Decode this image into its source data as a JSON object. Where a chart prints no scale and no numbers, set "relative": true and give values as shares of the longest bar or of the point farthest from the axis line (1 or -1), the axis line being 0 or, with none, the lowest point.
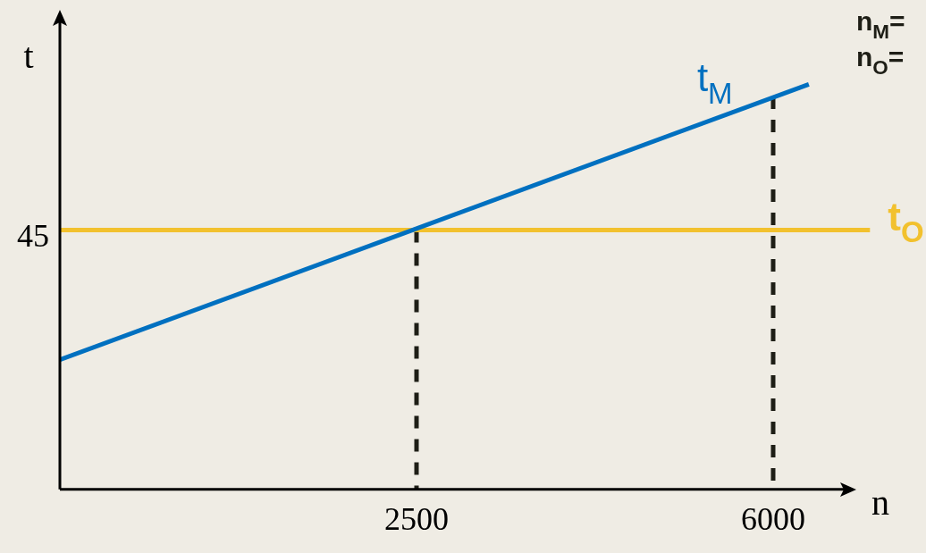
{
  "chart_data": {
    "type": "line",
    "xlabel": "n",
    "ylabel": "t",
    "relative": true,
    "xlim": [
      -1000,
      7000
    ],
    "xticks": [
      2500,
      6000
    ],
    "line_style": "solid",
    "marker": "none",
    "legend": false,
    "grid": false,
    "series": [
      {
        "name": "t$_{M}$",
        "color": "#0070c0",
        "x": [
          -1000,
          6350
        ],
        "values": [
          0.32,
          1
        ]
      },
      {
        "name": "t$_{O}$",
        "color": "#f2c12e",
        "x": [
          -1000,
          6950
        ],
        "values": [
          0.64,
          0.64
        ]
      },
      {
        "color": "#1e1e16",
        "x": [
          2500,
          2500
        ],
        "values": [
          0.64,
          0
        ],
        "line_style": "dashed"
      },
      {
        "color": "#1e1e16",
        "x": [
          6000,
          6000
        ],
        "values": [
          0.97,
          0
        ],
        "line_style": "dashed"
      }
    ],
    "annotations": [
      "45",
      "n$_{M}$=",
      "n$_{O}$="
    ]
  }
}
